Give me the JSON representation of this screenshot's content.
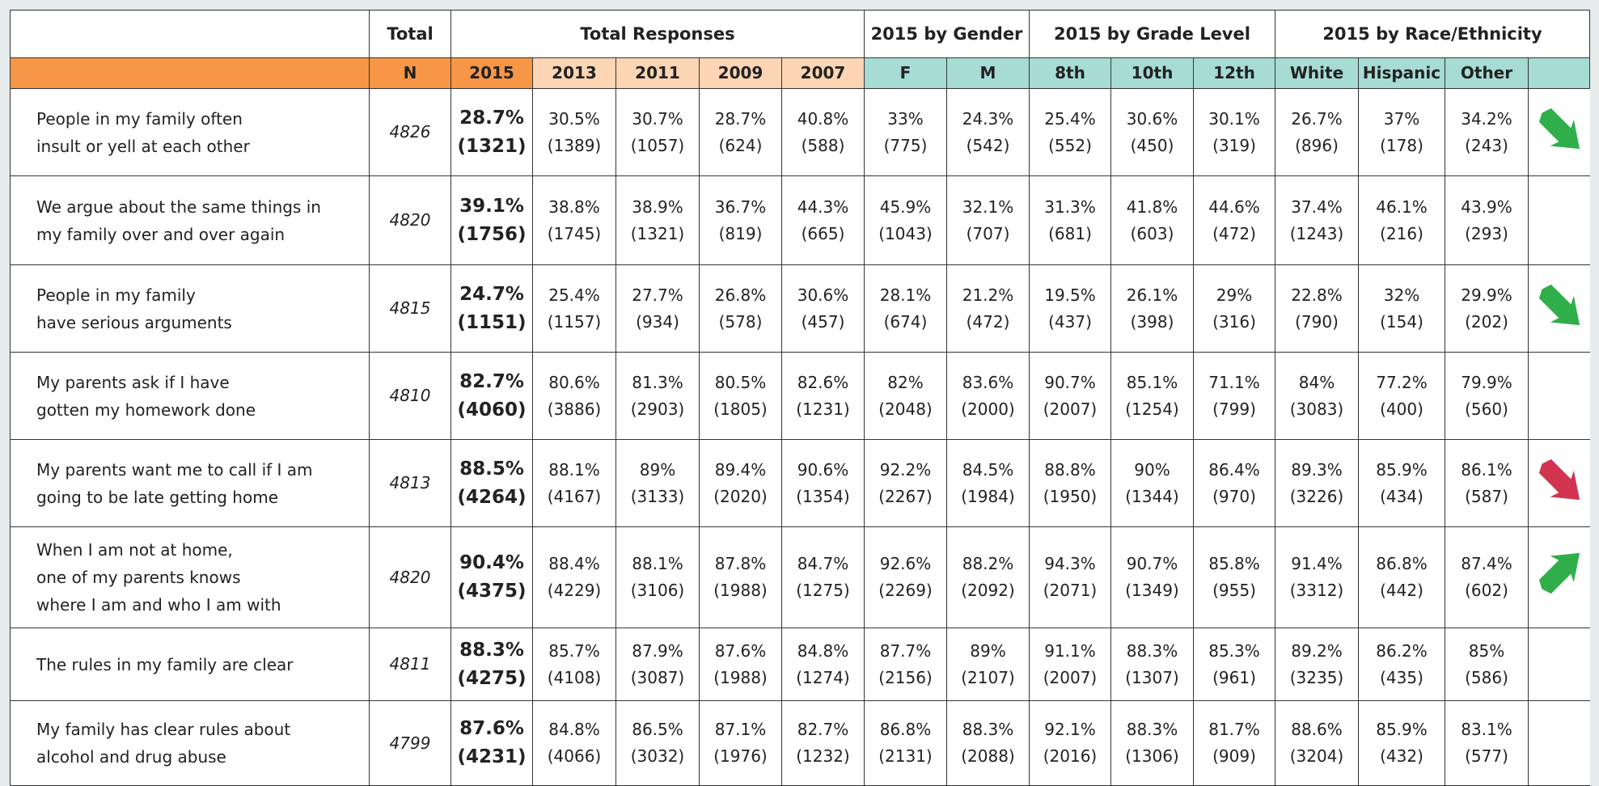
{
  "header_groups": [
    "Total",
    "Total Responses",
    "2015 by Gender",
    "2015 by Grade Level",
    "2015 by Race/Ethnicity"
  ],
  "columns": [
    "N",
    "2015",
    "2013",
    "2011",
    "2009",
    "2007",
    "F",
    "M",
    "8th",
    "10th",
    "12th",
    "White",
    "Hispanic",
    "Other"
  ],
  "rows": [
    {
      "label": [
        "People in my family often",
        "insult or yell at each other"
      ],
      "n": "4826",
      "cells": [
        [
          "28.7%",
          "(1321)"
        ],
        [
          "30.5%",
          "(1389)"
        ],
        [
          "30.7%",
          "(1057)"
        ],
        [
          "28.7%",
          "(624)"
        ],
        [
          "40.8%",
          "(588)"
        ],
        [
          "33%",
          "(775)"
        ],
        [
          "24.3%",
          "(542)"
        ],
        [
          "25.4%",
          "(552)"
        ],
        [
          "30.6%",
          "(450)"
        ],
        [
          "30.1%",
          "(319)"
        ],
        [
          "26.7%",
          "(896)"
        ],
        [
          "37%",
          "(178)"
        ],
        [
          "34.2%",
          "(243)"
        ]
      ],
      "trend": {
        "direction": "down",
        "color": "#2fae4a"
      }
    },
    {
      "label": [
        "We argue about the same things in",
        "my family over and over again"
      ],
      "n": "4820",
      "cells": [
        [
          "39.1%",
          "(1756)"
        ],
        [
          "38.8%",
          "(1745)"
        ],
        [
          "38.9%",
          "(1321)"
        ],
        [
          "36.7%",
          "(819)"
        ],
        [
          "44.3%",
          "(665)"
        ],
        [
          "45.9%",
          "(1043)"
        ],
        [
          "32.1%",
          "(707)"
        ],
        [
          "31.3%",
          "(681)"
        ],
        [
          "41.8%",
          "(603)"
        ],
        [
          "44.6%",
          "(472)"
        ],
        [
          "37.4%",
          "(1243)"
        ],
        [
          "46.1%",
          "(216)"
        ],
        [
          "43.9%",
          "(293)"
        ]
      ]
    },
    {
      "label": [
        "People in my family",
        "have serious arguments"
      ],
      "n": "4815",
      "cells": [
        [
          "24.7%",
          "(1151)"
        ],
        [
          "25.4%",
          "(1157)"
        ],
        [
          "27.7%",
          "(934)"
        ],
        [
          "26.8%",
          "(578)"
        ],
        [
          "30.6%",
          "(457)"
        ],
        [
          "28.1%",
          "(674)"
        ],
        [
          "21.2%",
          "(472)"
        ],
        [
          "19.5%",
          "(437)"
        ],
        [
          "26.1%",
          "(398)"
        ],
        [
          "29%",
          "(316)"
        ],
        [
          "22.8%",
          "(790)"
        ],
        [
          "32%",
          "(154)"
        ],
        [
          "29.9%",
          "(202)"
        ]
      ],
      "trend": {
        "direction": "down",
        "color": "#2fae4a"
      }
    },
    {
      "label": [
        "My parents ask if I have",
        "gotten my homework done"
      ],
      "n": "4810",
      "cells": [
        [
          "82.7%",
          "(4060)"
        ],
        [
          "80.6%",
          "(3886)"
        ],
        [
          "81.3%",
          "(2903)"
        ],
        [
          "80.5%",
          "(1805)"
        ],
        [
          "82.6%",
          "(1231)"
        ],
        [
          "82%",
          "(2048)"
        ],
        [
          "83.6%",
          "(2000)"
        ],
        [
          "90.7%",
          "(2007)"
        ],
        [
          "85.1%",
          "(1254)"
        ],
        [
          "71.1%",
          "(799)"
        ],
        [
          "84%",
          "(3083)"
        ],
        [
          "77.2%",
          "(400)"
        ],
        [
          "79.9%",
          "(560)"
        ]
      ]
    },
    {
      "label": [
        "My parents want me to call if I am",
        "going to be late getting home"
      ],
      "n": "4813",
      "cells": [
        [
          "88.5%",
          "(4264)"
        ],
        [
          "88.1%",
          "(4167)"
        ],
        [
          "89%",
          "(3133)"
        ],
        [
          "89.4%",
          "(2020)"
        ],
        [
          "90.6%",
          "(1354)"
        ],
        [
          "92.2%",
          "(2267)"
        ],
        [
          "84.5%",
          "(1984)"
        ],
        [
          "88.8%",
          "(1950)"
        ],
        [
          "90%",
          "(1344)"
        ],
        [
          "86.4%",
          "(970)"
        ],
        [
          "89.3%",
          "(3226)"
        ],
        [
          "85.9%",
          "(434)"
        ],
        [
          "86.1%",
          "(587)"
        ]
      ],
      "trend": {
        "direction": "down",
        "color": "#d2334f"
      }
    },
    {
      "label": [
        "When I am not at home,",
        "one of my parents knows",
        "where I am and who I am with"
      ],
      "n": "4820",
      "cells": [
        [
          "90.4%",
          "(4375)"
        ],
        [
          "88.4%",
          "(4229)"
        ],
        [
          "88.1%",
          "(3106)"
        ],
        [
          "87.8%",
          "(1988)"
        ],
        [
          "84.7%",
          "(1275)"
        ],
        [
          "92.6%",
          "(2269)"
        ],
        [
          "88.2%",
          "(2092)"
        ],
        [
          "94.3%",
          "(2071)"
        ],
        [
          "90.7%",
          "(1349)"
        ],
        [
          "85.8%",
          "(955)"
        ],
        [
          "91.4%",
          "(3312)"
        ],
        [
          "86.8%",
          "(442)"
        ],
        [
          "87.4%",
          "(602)"
        ]
      ],
      "trend": {
        "direction": "up",
        "color": "#2fae4a"
      }
    },
    {
      "label": [
        "The rules in my family are clear"
      ],
      "n": "4811",
      "cells": [
        [
          "88.3%",
          "(4275)"
        ],
        [
          "85.7%",
          "(4108)"
        ],
        [
          "87.9%",
          "(3087)"
        ],
        [
          "87.6%",
          "(1988)"
        ],
        [
          "84.8%",
          "(1274)"
        ],
        [
          "87.7%",
          "(2156)"
        ],
        [
          "89%",
          "(2107)"
        ],
        [
          "91.1%",
          "(2007)"
        ],
        [
          "88.3%",
          "(1307)"
        ],
        [
          "85.3%",
          "(961)"
        ],
        [
          "89.2%",
          "(3235)"
        ],
        [
          "86.2%",
          "(435)"
        ],
        [
          "85%",
          "(586)"
        ]
      ]
    },
    {
      "label": [
        "My family has clear rules about",
        "alcohol and drug abuse"
      ],
      "n": "4799",
      "cells": [
        [
          "87.6%",
          "(4231)"
        ],
        [
          "84.8%",
          "(4066)"
        ],
        [
          "86.5%",
          "(3032)"
        ],
        [
          "87.1%",
          "(1976)"
        ],
        [
          "82.7%",
          "(1232)"
        ],
        [
          "86.8%",
          "(2131)"
        ],
        [
          "88.3%",
          "(2088)"
        ],
        [
          "92.1%",
          "(2016)"
        ],
        [
          "88.3%",
          "(1306)"
        ],
        [
          "81.7%",
          "(909)"
        ],
        [
          "88.6%",
          "(3204)"
        ],
        [
          "85.9%",
          "(432)"
        ],
        [
          "83.1%",
          "(577)"
        ]
      ]
    }
  ]
}
